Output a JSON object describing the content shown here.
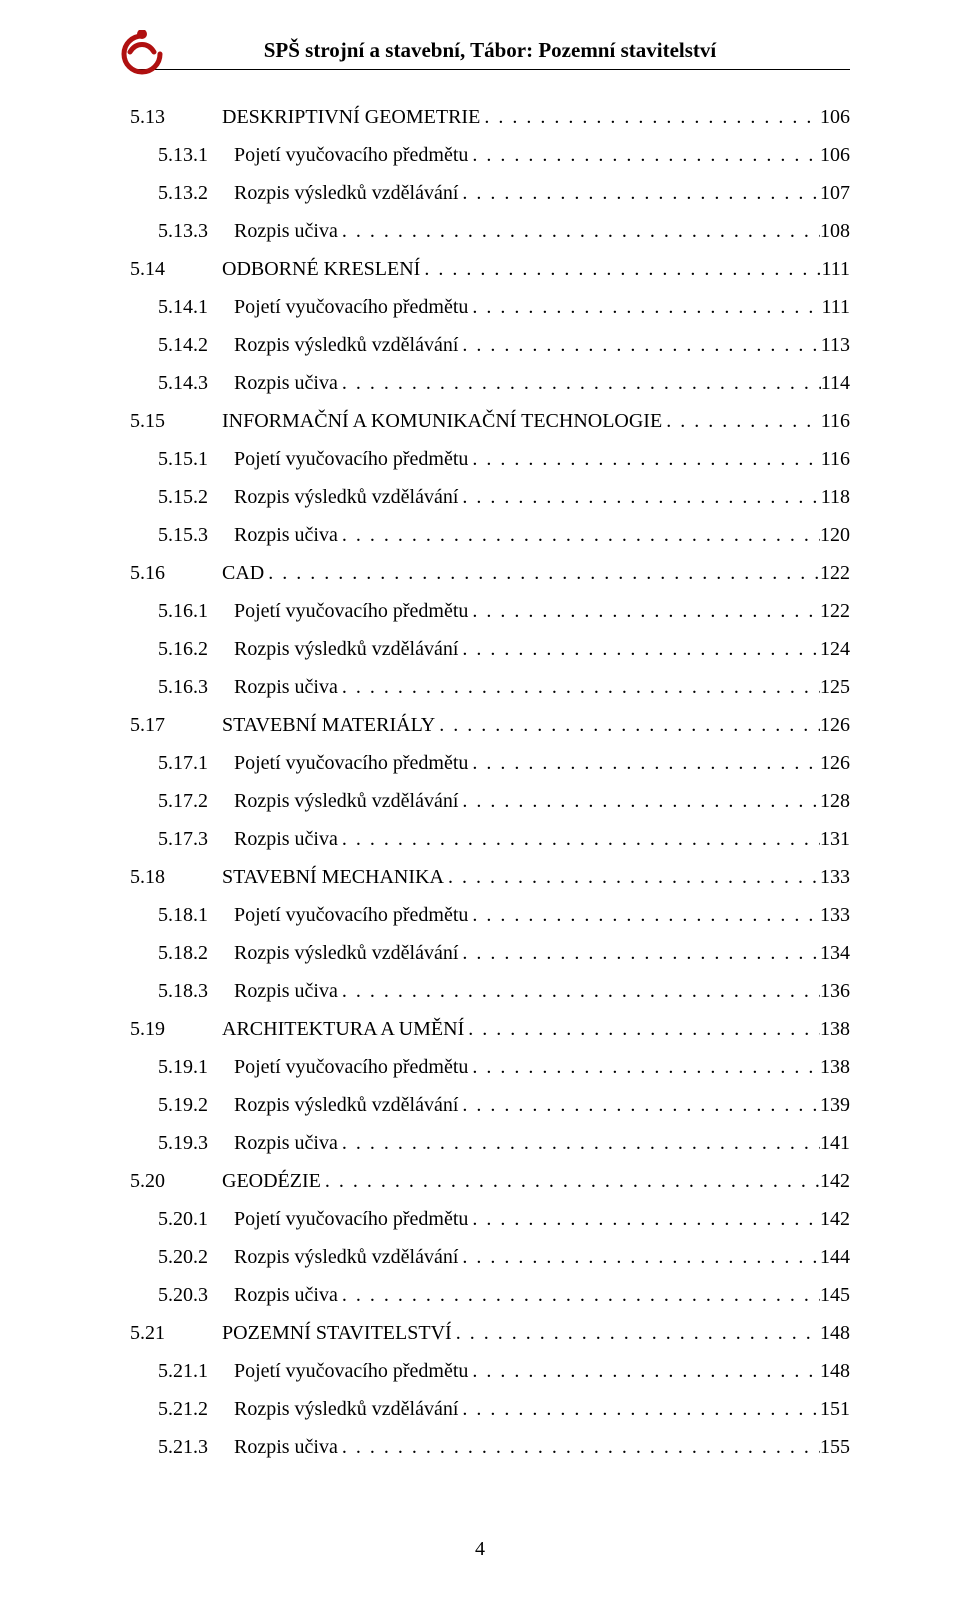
{
  "header": {
    "title": "SPŠ strojní a stavební, Tábor: Pozemní stavitelství"
  },
  "footer": {
    "page_number": "4"
  },
  "toc": [
    {
      "level": 1,
      "num": "5.13",
      "label": "DESKRIPTIVNÍ GEOMETRIE",
      "page": "106"
    },
    {
      "level": 2,
      "num": "5.13.1",
      "label": "Pojetí vyučovacího předmětu",
      "page": "106"
    },
    {
      "level": 2,
      "num": "5.13.2",
      "label": "Rozpis výsledků vzdělávání",
      "page": "107"
    },
    {
      "level": 2,
      "num": "5.13.3",
      "label": "Rozpis učiva",
      "page": "108"
    },
    {
      "level": 1,
      "num": "5.14",
      "label": "ODBORNÉ KRESLENÍ",
      "page": "111"
    },
    {
      "level": 2,
      "num": "5.14.1",
      "label": "Pojetí vyučovacího předmětu",
      "page": "111"
    },
    {
      "level": 2,
      "num": "5.14.2",
      "label": "Rozpis výsledků vzdělávání",
      "page": "113"
    },
    {
      "level": 2,
      "num": "5.14.3",
      "label": "Rozpis učiva",
      "page": "114"
    },
    {
      "level": 1,
      "num": "5.15",
      "label": "INFORMAČNÍ A KOMUNIKAČNÍ TECHNOLOGIE",
      "page": "116"
    },
    {
      "level": 2,
      "num": "5.15.1",
      "label": "Pojetí vyučovacího předmětu",
      "page": "116"
    },
    {
      "level": 2,
      "num": "5.15.2",
      "label": "Rozpis výsledků vzdělávání",
      "page": "118"
    },
    {
      "level": 2,
      "num": "5.15.3",
      "label": "Rozpis učiva",
      "page": "120"
    },
    {
      "level": 1,
      "num": "5.16",
      "label": "CAD",
      "page": "122"
    },
    {
      "level": 2,
      "num": "5.16.1",
      "label": "Pojetí vyučovacího předmětu",
      "page": "122"
    },
    {
      "level": 2,
      "num": "5.16.2",
      "label": "Rozpis výsledků vzdělávání",
      "page": "124"
    },
    {
      "level": 2,
      "num": "5.16.3",
      "label": "Rozpis učiva",
      "page": "125"
    },
    {
      "level": 1,
      "num": "5.17",
      "label": "STAVEBNÍ MATERIÁLY",
      "page": "126"
    },
    {
      "level": 2,
      "num": "5.17.1",
      "label": "Pojetí vyučovacího předmětu",
      "page": "126"
    },
    {
      "level": 2,
      "num": "5.17.2",
      "label": "Rozpis výsledků vzdělávání",
      "page": "128"
    },
    {
      "level": 2,
      "num": "5.17.3",
      "label": "Rozpis učiva",
      "page": "131"
    },
    {
      "level": 1,
      "num": "5.18",
      "label": "STAVEBNÍ MECHANIKA",
      "page": "133"
    },
    {
      "level": 2,
      "num": "5.18.1",
      "label": "Pojetí vyučovacího předmětu",
      "page": "133"
    },
    {
      "level": 2,
      "num": "5.18.2",
      "label": "Rozpis výsledků vzdělávání",
      "page": "134"
    },
    {
      "level": 2,
      "num": "5.18.3",
      "label": "Rozpis učiva",
      "page": "136"
    },
    {
      "level": 1,
      "num": "5.19",
      "label": "ARCHITEKTURA A UMĚNÍ",
      "page": "138"
    },
    {
      "level": 2,
      "num": "5.19.1",
      "label": "Pojetí vyučovacího předmětu",
      "page": "138"
    },
    {
      "level": 2,
      "num": "5.19.2",
      "label": "Rozpis výsledků vzdělávání",
      "page": "139"
    },
    {
      "level": 2,
      "num": "5.19.3",
      "label": "Rozpis učiva",
      "page": "141"
    },
    {
      "level": 1,
      "num": "5.20",
      "label": "GEODÉZIE",
      "page": "142"
    },
    {
      "level": 2,
      "num": "5.20.1",
      "label": "Pojetí vyučovacího předmětu",
      "page": "142"
    },
    {
      "level": 2,
      "num": "5.20.2",
      "label": "Rozpis výsledků vzdělávání",
      "page": "144"
    },
    {
      "level": 2,
      "num": "5.20.3",
      "label": "Rozpis učiva",
      "page": "145"
    },
    {
      "level": 1,
      "num": "5.21",
      "label": "POZEMNÍ STAVITELSTVÍ",
      "page": "148"
    },
    {
      "level": 2,
      "num": "5.21.1",
      "label": "Pojetí vyučovacího předmětu",
      "page": "148"
    },
    {
      "level": 2,
      "num": "5.21.2",
      "label": "Rozpis výsledků vzdělávání",
      "page": "151"
    },
    {
      "level": 2,
      "num": "5.21.3",
      "label": "Rozpis učiva",
      "page": "155"
    }
  ]
}
